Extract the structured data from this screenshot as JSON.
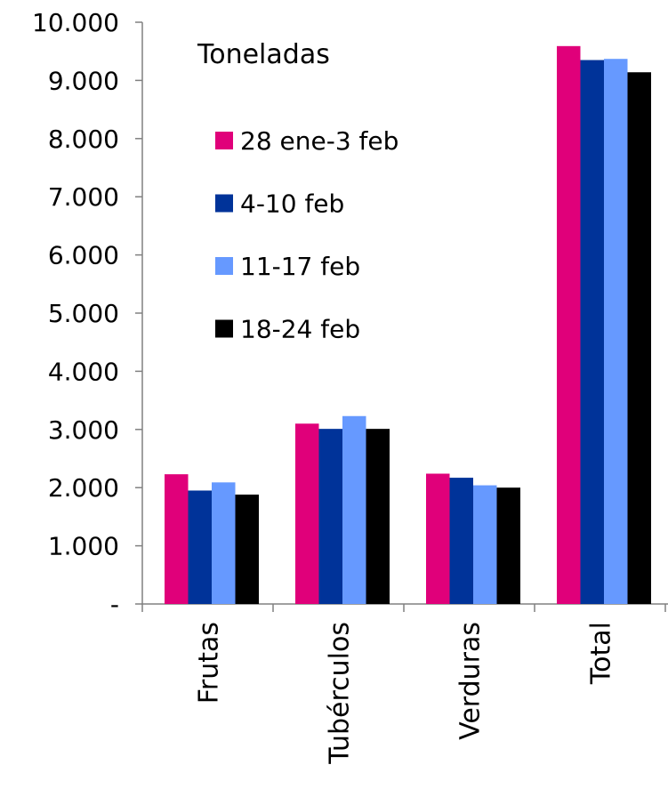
{
  "chart_data": {
    "type": "bar",
    "title": "",
    "unit_label": "Toneladas",
    "xlabel": "",
    "ylabel": "",
    "ylim": [
      0,
      10000
    ],
    "y_ticks": [
      {
        "value": 0,
        "label": "-"
      },
      {
        "value": 1000,
        "label": "1.000"
      },
      {
        "value": 2000,
        "label": "2.000"
      },
      {
        "value": 3000,
        "label": "3.000"
      },
      {
        "value": 4000,
        "label": "4.000"
      },
      {
        "value": 5000,
        "label": "5.000"
      },
      {
        "value": 6000,
        "label": "6.000"
      },
      {
        "value": 7000,
        "label": "7.000"
      },
      {
        "value": 8000,
        "label": "8.000"
      },
      {
        "value": 9000,
        "label": "9.000"
      },
      {
        "value": 10000,
        "label": "10.000"
      }
    ],
    "categories": [
      "Frutas",
      "Tubérculos",
      "Verduras",
      "Total"
    ],
    "series": [
      {
        "name": "28 ene-3 feb",
        "color": "#e0007a",
        "values": [
          2230,
          3100,
          2240,
          9590
        ]
      },
      {
        "name": "4-10 feb",
        "color": "#003399",
        "values": [
          1950,
          3010,
          2170,
          9350
        ]
      },
      {
        "name": "11-17 feb",
        "color": "#6699ff",
        "values": [
          2090,
          3230,
          2040,
          9370
        ]
      },
      {
        "name": "18-24 feb",
        "color": "#000000",
        "values": [
          1880,
          3010,
          2000,
          9140
        ]
      }
    ],
    "grid": false,
    "legend_position": "top-left"
  }
}
